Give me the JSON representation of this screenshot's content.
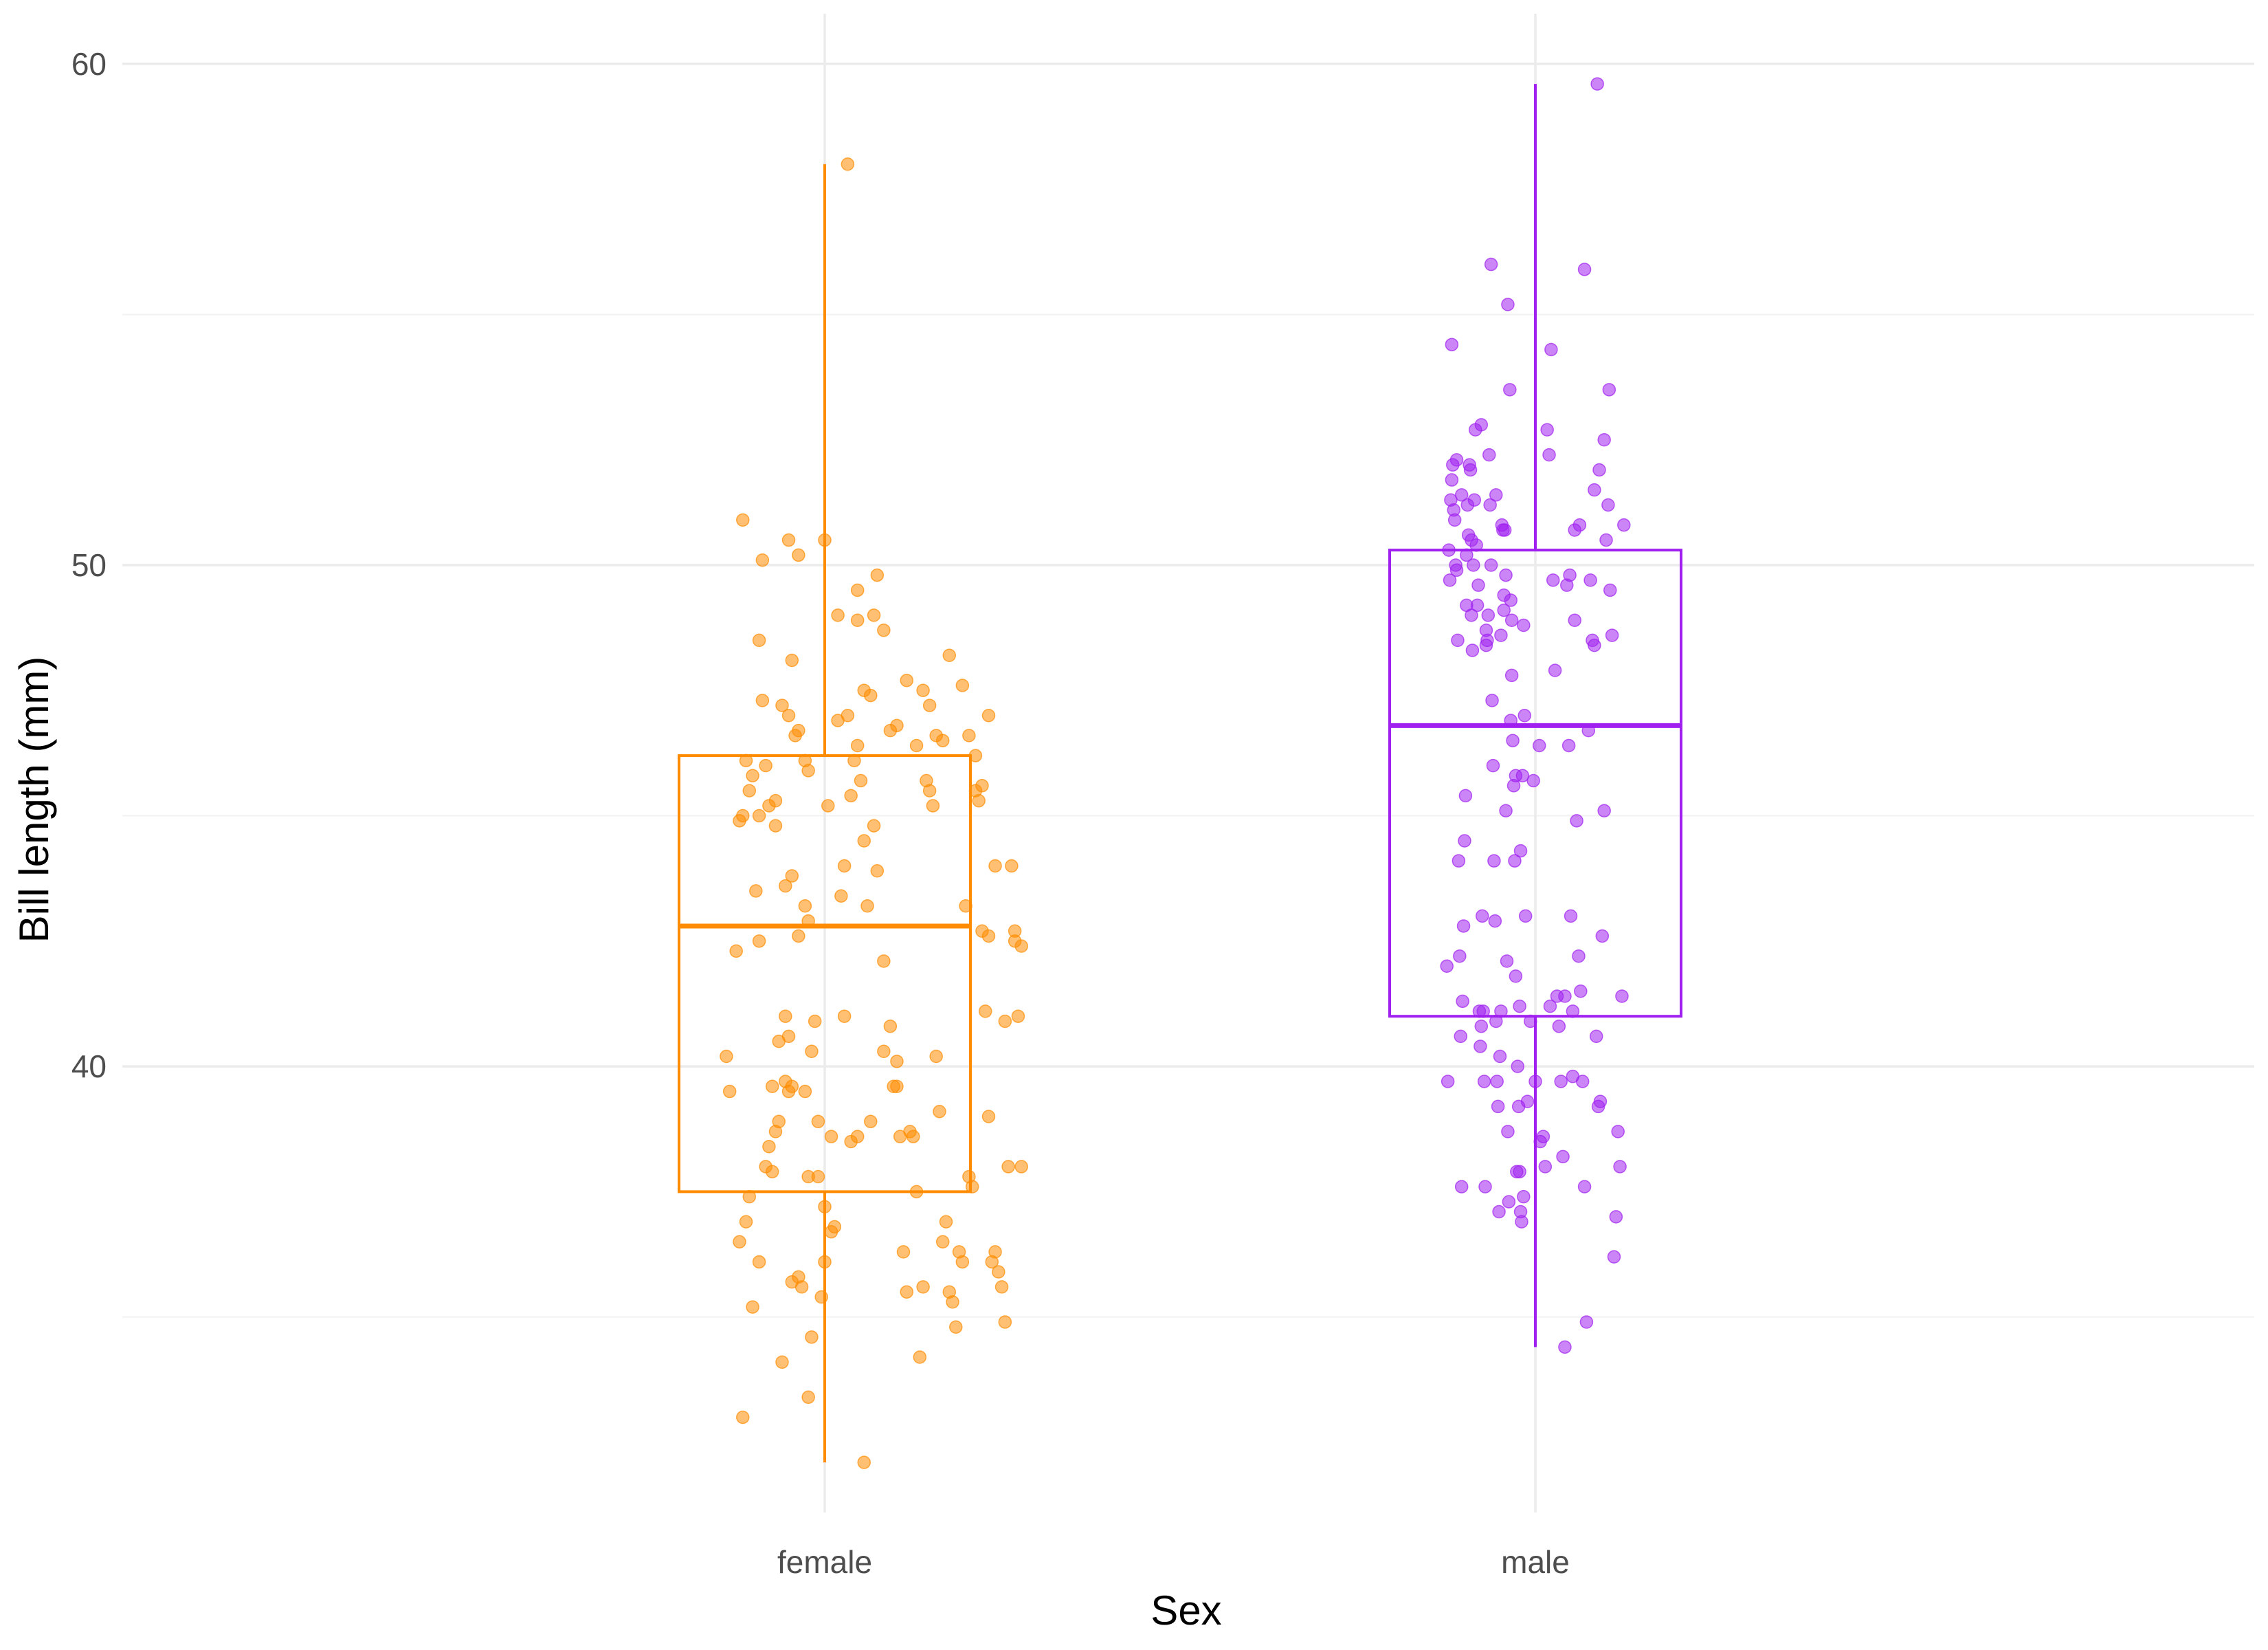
{
  "chart_data": {
    "type": "boxplot",
    "xlabel": "Sex",
    "ylabel": "Bill length (mm)",
    "categories": [
      "female",
      "male"
    ],
    "yticks": [
      40,
      50,
      60
    ],
    "ylim": [
      31.1,
      61.0
    ],
    "grid": true,
    "legend": "none",
    "colors": {
      "female": "#FF8C00",
      "male": "#A020F0"
    },
    "boxes": [
      {
        "name": "female",
        "q1": 37.5,
        "median": 42.8,
        "q3": 46.2,
        "whisker_low": 32.1,
        "whisker_high": 58.0
      },
      {
        "name": "male",
        "q1": 41.0,
        "median": 46.8,
        "q3": 50.3,
        "whisker_low": 34.4,
        "whisker_high": 59.6
      }
    ],
    "points": {
      "female": [
        [
          -0.3,
          40.2
        ],
        [
          -0.29,
          39.5
        ],
        [
          -0.27,
          42.3
        ],
        [
          -0.26,
          44.9
        ],
        [
          -0.25,
          45.0
        ],
        [
          -0.24,
          46.1
        ],
        [
          -0.23,
          45.5
        ],
        [
          -0.22,
          45.8
        ],
        [
          -0.21,
          43.5
        ],
        [
          -0.2,
          45.0
        ],
        [
          -0.26,
          36.5
        ],
        [
          -0.25,
          33.0
        ],
        [
          -0.24,
          36.9
        ],
        [
          -0.23,
          37.4
        ],
        [
          -0.22,
          35.2
        ],
        [
          -0.2,
          36.1
        ],
        [
          -0.18,
          38.0
        ],
        [
          -0.17,
          38.4
        ],
        [
          -0.16,
          37.9
        ],
        [
          -0.15,
          38.7
        ],
        [
          -0.14,
          38.9
        ],
        [
          -0.12,
          39.7
        ],
        [
          -0.11,
          39.5
        ],
        [
          -0.1,
          39.6
        ],
        [
          -0.13,
          34.1
        ],
        [
          -0.1,
          35.7
        ],
        [
          -0.08,
          35.8
        ],
        [
          -0.07,
          35.6
        ],
        [
          -0.05,
          33.4
        ],
        [
          -0.04,
          34.6
        ],
        [
          -0.25,
          50.9
        ],
        [
          -0.2,
          48.5
        ],
        [
          -0.19,
          47.3
        ],
        [
          -0.18,
          46.0
        ],
        [
          -0.17,
          45.2
        ],
        [
          -0.15,
          45.3
        ],
        [
          -0.13,
          47.2
        ],
        [
          -0.11,
          47.0
        ],
        [
          -0.09,
          46.6
        ],
        [
          -0.08,
          46.7
        ],
        [
          -0.06,
          46.1
        ],
        [
          -0.1,
          48.1
        ],
        [
          -0.05,
          45.9
        ],
        [
          -0.11,
          50.5
        ],
        [
          -0.08,
          50.2
        ],
        [
          -0.19,
          50.1
        ],
        [
          -0.15,
          44.8
        ],
        [
          -0.12,
          43.6
        ],
        [
          -0.1,
          43.8
        ],
        [
          -0.06,
          43.2
        ],
        [
          -0.2,
          42.5
        ],
        [
          -0.08,
          42.6
        ],
        [
          -0.12,
          41.0
        ],
        [
          -0.11,
          40.6
        ],
        [
          -0.05,
          42.9
        ],
        [
          -0.05,
          37.8
        ],
        [
          -0.04,
          40.3
        ],
        [
          -0.02,
          37.8
        ],
        [
          -0.02,
          38.9
        ],
        [
          -0.01,
          35.4
        ],
        [
          0.0,
          36.1
        ],
        [
          0.0,
          37.2
        ],
        [
          0.01,
          45.2
        ],
        [
          0.02,
          36.7
        ],
        [
          0.03,
          36.8
        ],
        [
          0.04,
          46.9
        ],
        [
          0.05,
          43.4
        ],
        [
          0.06,
          44.0
        ],
        [
          0.07,
          47.0
        ],
        [
          0.08,
          45.4
        ],
        [
          0.09,
          46.1
        ],
        [
          0.1,
          46.4
        ],
        [
          0.1,
          48.9
        ],
        [
          0.11,
          45.7
        ],
        [
          0.12,
          44.5
        ],
        [
          0.13,
          43.2
        ],
        [
          0.15,
          44.8
        ],
        [
          0.16,
          43.9
        ],
        [
          0.18,
          42.1
        ],
        [
          0.2,
          40.8
        ],
        [
          0.21,
          39.6
        ],
        [
          0.22,
          39.6
        ],
        [
          0.23,
          38.6
        ],
        [
          0.24,
          36.3
        ],
        [
          0.25,
          35.5
        ],
        [
          0.26,
          38.7
        ],
        [
          0.27,
          38.6
        ],
        [
          0.28,
          37.5
        ],
        [
          0.29,
          34.2
        ],
        [
          0.3,
          35.6
        ],
        [
          0.31,
          45.7
        ],
        [
          0.32,
          45.5
        ],
        [
          0.33,
          45.2
        ],
        [
          0.34,
          40.2
        ],
        [
          0.35,
          39.1
        ],
        [
          0.36,
          36.5
        ],
        [
          0.37,
          36.9
        ],
        [
          0.38,
          35.5
        ],
        [
          0.39,
          35.3
        ],
        [
          0.4,
          34.8
        ],
        [
          0.41,
          36.3
        ],
        [
          0.42,
          36.1
        ],
        [
          0.43,
          43.2
        ],
        [
          0.44,
          37.8
        ],
        [
          0.45,
          37.6
        ],
        [
          0.46,
          45.5
        ],
        [
          0.47,
          45.3
        ],
        [
          0.48,
          42.7
        ],
        [
          0.49,
          41.1
        ],
        [
          0.5,
          42.6
        ],
        [
          0.51,
          36.1
        ],
        [
          0.52,
          36.3
        ],
        [
          0.53,
          35.9
        ],
        [
          0.54,
          35.6
        ],
        [
          0.55,
          34.9
        ],
        [
          0.56,
          38.0
        ],
        [
          0.57,
          44.0
        ],
        [
          0.58,
          42.5
        ],
        [
          0.59,
          41.0
        ],
        [
          0.6,
          42.4
        ],
        [
          0.1,
          49.5
        ],
        [
          0.12,
          47.5
        ],
        [
          0.14,
          47.4
        ],
        [
          0.15,
          49.0
        ],
        [
          0.16,
          49.8
        ],
        [
          0.18,
          48.7
        ],
        [
          0.2,
          46.7
        ],
        [
          0.22,
          46.8
        ],
        [
          0.25,
          47.7
        ],
        [
          0.28,
          46.4
        ],
        [
          0.3,
          47.5
        ],
        [
          0.32,
          47.2
        ],
        [
          0.34,
          46.6
        ],
        [
          0.36,
          46.5
        ],
        [
          0.38,
          48.2
        ],
        [
          0.42,
          47.6
        ],
        [
          0.44,
          46.6
        ],
        [
          0.46,
          46.2
        ],
        [
          0.48,
          45.6
        ],
        [
          0.5,
          47.0
        ],
        [
          0.6,
          38.0
        ],
        [
          0.58,
          42.7
        ],
        [
          0.55,
          40.9
        ],
        [
          0.52,
          44.0
        ],
        [
          0.5,
          39.0
        ],
        [
          0.04,
          49.0
        ],
        [
          0.0,
          50.5
        ],
        [
          -0.03,
          40.9
        ],
        [
          0.07,
          58.0
        ],
        [
          0.12,
          32.1
        ],
        [
          -0.16,
          39.6
        ],
        [
          -0.14,
          40.5
        ],
        [
          -0.06,
          39.5
        ],
        [
          0.02,
          38.6
        ],
        [
          0.06,
          41.0
        ],
        [
          0.08,
          38.5
        ],
        [
          0.1,
          38.6
        ],
        [
          0.14,
          38.9
        ],
        [
          0.18,
          40.3
        ],
        [
          0.22,
          40.1
        ]
      ],
      "male": [
        [
          -0.3,
          42.0
        ],
        [
          -0.29,
          39.7
        ],
        [
          -0.28,
          50.3
        ],
        [
          -0.27,
          49.7
        ],
        [
          -0.26,
          51.3
        ],
        [
          -0.25,
          51.7
        ],
        [
          -0.24,
          52.0
        ],
        [
          -0.23,
          51.1
        ],
        [
          -0.22,
          50.9
        ],
        [
          -0.21,
          50.0
        ],
        [
          -0.2,
          49.9
        ],
        [
          -0.19,
          48.5
        ],
        [
          -0.18,
          44.1
        ],
        [
          -0.17,
          42.2
        ],
        [
          -0.16,
          40.6
        ],
        [
          -0.15,
          37.6
        ],
        [
          -0.14,
          41.3
        ],
        [
          -0.13,
          42.8
        ],
        [
          -0.12,
          44.5
        ],
        [
          -0.11,
          45.4
        ],
        [
          -0.1,
          49.2
        ],
        [
          -0.09,
          51.2
        ],
        [
          -0.08,
          50.6
        ],
        [
          -0.07,
          52.0
        ],
        [
          -0.06,
          51.9
        ],
        [
          -0.05,
          49.0
        ],
        [
          -0.04,
          48.3
        ],
        [
          -0.03,
          50.0
        ],
        [
          -0.02,
          51.3
        ],
        [
          -0.01,
          52.7
        ],
        [
          0.0,
          50.4
        ],
        [
          0.01,
          49.2
        ],
        [
          0.02,
          49.6
        ],
        [
          0.03,
          41.1
        ],
        [
          0.04,
          40.4
        ],
        [
          0.05,
          40.8
        ],
        [
          0.06,
          43.0
        ],
        [
          0.07,
          41.1
        ],
        [
          0.08,
          39.7
        ],
        [
          0.09,
          37.6
        ],
        [
          0.1,
          48.7
        ],
        [
          0.11,
          48.5
        ],
        [
          0.12,
          49.0
        ],
        [
          0.13,
          52.2
        ],
        [
          0.14,
          51.2
        ],
        [
          0.15,
          50.0
        ],
        [
          0.16,
          47.3
        ],
        [
          0.17,
          46.0
        ],
        [
          0.18,
          44.1
        ],
        [
          0.19,
          42.9
        ],
        [
          0.2,
          40.9
        ],
        [
          0.21,
          39.7
        ],
        [
          0.22,
          39.2
        ],
        [
          0.23,
          37.1
        ],
        [
          0.24,
          40.2
        ],
        [
          0.25,
          41.1
        ],
        [
          0.26,
          50.8
        ],
        [
          0.27,
          50.7
        ],
        [
          0.28,
          49.1
        ],
        [
          0.29,
          50.7
        ],
        [
          0.3,
          45.1
        ],
        [
          0.31,
          42.1
        ],
        [
          0.32,
          38.7
        ],
        [
          0.33,
          37.3
        ],
        [
          0.34,
          53.5
        ],
        [
          0.35,
          49.3
        ],
        [
          0.36,
          48.9
        ],
        [
          0.37,
          46.5
        ],
        [
          0.38,
          45.6
        ],
        [
          0.39,
          44.1
        ],
        [
          0.4,
          41.8
        ],
        [
          0.41,
          37.9
        ],
        [
          0.42,
          40.0
        ],
        [
          0.43,
          39.2
        ],
        [
          0.44,
          37.9
        ],
        [
          0.45,
          37.1
        ],
        [
          0.46,
          36.9
        ],
        [
          0.47,
          45.8
        ],
        [
          0.48,
          48.8
        ],
        [
          0.49,
          47.0
        ],
        [
          -0.25,
          54.4
        ],
        [
          -0.2,
          52.1
        ],
        [
          -0.15,
          51.4
        ],
        [
          -0.1,
          50.2
        ],
        [
          -0.05,
          50.5
        ],
        [
          0.05,
          52.8
        ],
        [
          0.1,
          48.4
        ],
        [
          0.15,
          56.0
        ],
        [
          0.2,
          51.4
        ],
        [
          0.25,
          48.6
        ],
        [
          0.3,
          49.8
        ],
        [
          0.32,
          55.2
        ],
        [
          0.35,
          46.9
        ],
        [
          0.4,
          45.8
        ],
        [
          0.45,
          44.3
        ],
        [
          0.5,
          43.0
        ],
        [
          0.55,
          40.9
        ],
        [
          0.6,
          39.7
        ],
        [
          0.65,
          38.5
        ],
        [
          0.7,
          38.0
        ],
        [
          0.72,
          52.7
        ],
        [
          0.74,
          52.2
        ],
        [
          0.76,
          54.3
        ],
        [
          0.78,
          49.7
        ],
        [
          0.8,
          47.9
        ],
        [
          0.82,
          41.4
        ],
        [
          0.84,
          40.8
        ],
        [
          0.86,
          39.7
        ],
        [
          0.88,
          38.2
        ],
        [
          0.9,
          41.4
        ],
        [
          0.92,
          49.6
        ],
        [
          0.94,
          46.4
        ],
        [
          0.96,
          43.0
        ],
        [
          0.98,
          41.1
        ],
        [
          1.0,
          50.7
        ],
        [
          1.02,
          44.9
        ],
        [
          1.04,
          42.2
        ],
        [
          1.06,
          41.5
        ],
        [
          1.08,
          39.7
        ],
        [
          1.1,
          37.6
        ],
        [
          1.12,
          34.9
        ],
        [
          1.14,
          46.7
        ],
        [
          1.16,
          49.7
        ],
        [
          1.18,
          48.5
        ],
        [
          1.2,
          48.4
        ],
        [
          1.22,
          40.6
        ],
        [
          1.24,
          39.2
        ],
        [
          1.26,
          39.3
        ],
        [
          1.28,
          42.6
        ],
        [
          1.3,
          45.1
        ],
        [
          1.32,
          50.5
        ],
        [
          1.34,
          51.2
        ],
        [
          1.36,
          49.5
        ],
        [
          1.38,
          48.6
        ],
        [
          1.4,
          36.2
        ],
        [
          1.42,
          37.0
        ],
        [
          1.44,
          38.7
        ],
        [
          1.46,
          38.0
        ],
        [
          1.48,
          41.4
        ],
        [
          1.5,
          50.8
        ],
        [
          1.35,
          53.5
        ],
        [
          1.3,
          52.5
        ],
        [
          1.25,
          51.9
        ],
        [
          1.2,
          51.5
        ],
        [
          1.1,
          55.9
        ],
        [
          1.05,
          50.8
        ],
        [
          1.0,
          48.9
        ],
        [
          0.95,
          49.8
        ],
        [
          0.98,
          39.8
        ],
        [
          0.9,
          34.4
        ],
        [
          0.75,
          41.2
        ],
        [
          0.68,
          38.6
        ],
        [
          0.64,
          46.4
        ],
        [
          0.58,
          45.7
        ],
        [
          0.52,
          39.3
        ],
        [
          0.48,
          37.4
        ],
        [
          0.44,
          41.2
        ],
        [
          0.36,
          47.8
        ],
        [
          0.28,
          49.4
        ],
        [
          1.23,
          59.6
        ]
      ]
    }
  }
}
